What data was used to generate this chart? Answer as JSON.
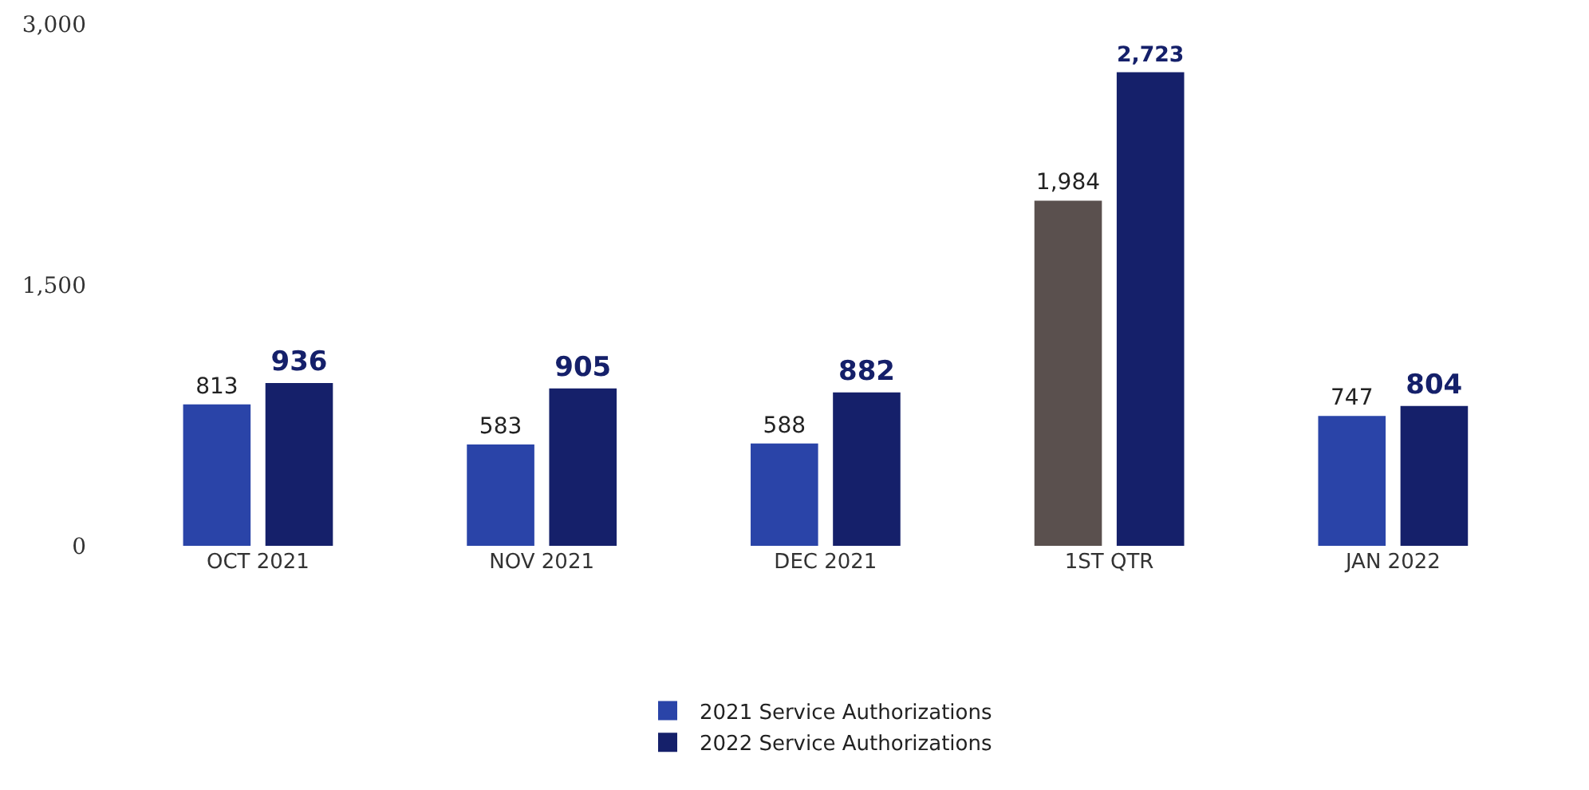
{
  "chart_data": {
    "type": "bar",
    "categories": [
      "OCT 2021",
      "NOV 2021",
      "DEC 2021",
      "1ST QTR",
      "JAN 2022"
    ],
    "series": [
      {
        "name": "2021 Service Authorizations",
        "color": "#2a44a8",
        "colors": [
          null,
          null,
          null,
          "#5a504e",
          null
        ],
        "values": [
          813,
          583,
          588,
          1984,
          747
        ],
        "value_labels": [
          "813",
          "583",
          "588",
          "1,984",
          "747"
        ]
      },
      {
        "name": "2022 Service Authorizations",
        "color": "#15206a",
        "values": [
          936,
          905,
          882,
          2723,
          804
        ],
        "value_labels": [
          "936",
          "905",
          "882",
          "2,723",
          "804"
        ]
      }
    ],
    "ylim": [
      0,
      3000
    ],
    "yticks": [
      0,
      {
        "value": 1500,
        "label": "1,500"
      },
      {
        "value": 3000,
        "label": "3,000"
      }
    ],
    "legend": "bottom"
  }
}
